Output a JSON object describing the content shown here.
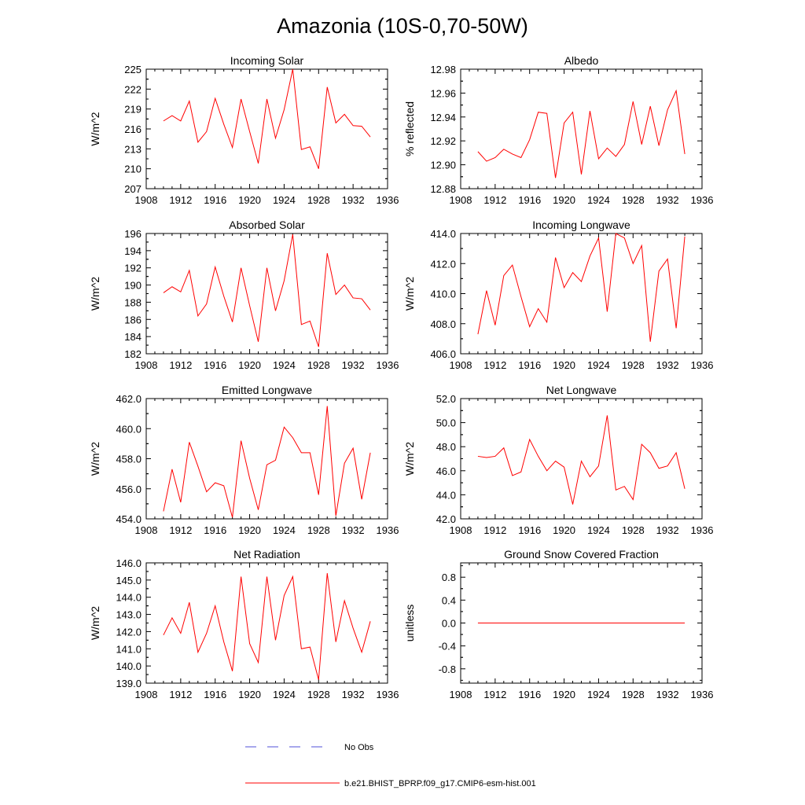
{
  "figure_title": "Amazonia (10S-0,70-50W)",
  "legend": [
    {
      "label": "No Obs",
      "color": "#4f4fd8",
      "style": "dashed"
    },
    {
      "label": "b.e21.BHIST_BPRP.f09_g17.CMIP6-esm-hist.001",
      "color": "#ff0000",
      "style": "solid"
    }
  ],
  "chart_data": [
    {
      "type": "line",
      "title": "Incoming Solar",
      "ylabel": "W/m^2",
      "xlabel": "",
      "xlim": [
        1908,
        1936
      ],
      "xticks": [
        "1908",
        "1912",
        "1916",
        "1920",
        "1924",
        "1928",
        "1932",
        "1936"
      ],
      "ylim": [
        207,
        225
      ],
      "yticks": [
        "207",
        "210",
        "213",
        "216",
        "219",
        "222",
        "225"
      ],
      "x": [
        1910,
        1911,
        1912,
        1913,
        1914,
        1915,
        1916,
        1917,
        1918,
        1919,
        1920,
        1921,
        1922,
        1923,
        1924,
        1925,
        1926,
        1927,
        1928,
        1929,
        1930,
        1931,
        1932,
        1933,
        1934
      ],
      "series": [
        {
          "name": "b.e21.BHIST_BPRP.f09_g17.CMIP6-esm-hist.001",
          "color": "#ff0000",
          "values": [
            217.2,
            218.0,
            217.2,
            220.2,
            214.0,
            215.6,
            220.6,
            216.7,
            213.2,
            220.5,
            215.6,
            210.8,
            220.5,
            214.6,
            218.9,
            225.0,
            212.9,
            213.3,
            210.0,
            222.3,
            216.9,
            218.2,
            216.5,
            216.4,
            214.8
          ]
        }
      ]
    },
    {
      "type": "line",
      "title": "Albedo",
      "ylabel": "% reflected",
      "xlabel": "",
      "xlim": [
        1908,
        1936
      ],
      "xticks": [
        "1908",
        "1912",
        "1916",
        "1920",
        "1924",
        "1928",
        "1932",
        "1936"
      ],
      "ylim": [
        12.88,
        12.98
      ],
      "yticks": [
        "12.88",
        "12.90",
        "12.92",
        "12.94",
        "12.96",
        "12.98"
      ],
      "x": [
        1910,
        1911,
        1912,
        1913,
        1914,
        1915,
        1916,
        1917,
        1918,
        1919,
        1920,
        1921,
        1922,
        1923,
        1924,
        1925,
        1926,
        1927,
        1928,
        1929,
        1930,
        1931,
        1932,
        1933,
        1934
      ],
      "series": [
        {
          "name": "b.e21.BHIST_BPRP.f09_g17.CMIP6-esm-hist.001",
          "color": "#ff0000",
          "values": [
            12.911,
            12.903,
            12.906,
            12.913,
            12.909,
            12.906,
            12.921,
            12.944,
            12.943,
            12.889,
            12.935,
            12.944,
            12.892,
            12.945,
            12.905,
            12.914,
            12.907,
            12.917,
            12.953,
            12.917,
            12.949,
            12.916,
            12.946,
            12.962,
            12.909
          ]
        }
      ]
    },
    {
      "type": "line",
      "title": "Absorbed Solar",
      "ylabel": "W/m^2",
      "xlabel": "",
      "xlim": [
        1908,
        1936
      ],
      "xticks": [
        "1908",
        "1912",
        "1916",
        "1920",
        "1924",
        "1928",
        "1932",
        "1936"
      ],
      "ylim": [
        182,
        196
      ],
      "yticks": [
        "182",
        "184",
        "186",
        "188",
        "190",
        "192",
        "194",
        "196"
      ],
      "x": [
        1910,
        1911,
        1912,
        1913,
        1914,
        1915,
        1916,
        1917,
        1918,
        1919,
        1920,
        1921,
        1922,
        1923,
        1924,
        1925,
        1926,
        1927,
        1928,
        1929,
        1930,
        1931,
        1932,
        1933,
        1934
      ],
      "series": [
        {
          "name": "b.e21.BHIST_BPRP.f09_g17.CMIP6-esm-hist.001",
          "color": "#ff0000",
          "values": [
            189.1,
            189.8,
            189.2,
            191.7,
            186.4,
            187.8,
            192.1,
            188.7,
            185.7,
            192.0,
            187.6,
            183.4,
            192.0,
            187.0,
            190.5,
            195.9,
            185.4,
            185.8,
            182.8,
            193.7,
            188.9,
            190.0,
            188.5,
            188.4,
            187.1
          ]
        }
      ]
    },
    {
      "type": "line",
      "title": "Incoming Longwave",
      "ylabel": "W/m^2",
      "xlabel": "",
      "xlim": [
        1908,
        1936
      ],
      "xticks": [
        "1908",
        "1912",
        "1916",
        "1920",
        "1924",
        "1928",
        "1932",
        "1936"
      ],
      "ylim": [
        406.0,
        414.0
      ],
      "yticks": [
        "406.0",
        "408.0",
        "410.0",
        "412.0",
        "414.0"
      ],
      "x": [
        1910,
        1911,
        1912,
        1913,
        1914,
        1915,
        1916,
        1917,
        1918,
        1919,
        1920,
        1921,
        1922,
        1923,
        1924,
        1925,
        1926,
        1927,
        1928,
        1929,
        1930,
        1931,
        1932,
        1933,
        1934
      ],
      "series": [
        {
          "name": "b.e21.BHIST_BPRP.f09_g17.CMIP6-esm-hist.001",
          "color": "#ff0000",
          "values": [
            407.3,
            410.2,
            407.9,
            411.2,
            411.9,
            409.8,
            407.8,
            409.0,
            408.1,
            412.4,
            410.4,
            411.4,
            410.8,
            412.5,
            413.7,
            408.8,
            414.0,
            413.7,
            412.0,
            413.2,
            406.8,
            411.5,
            412.3,
            407.7,
            413.8
          ]
        }
      ]
    },
    {
      "type": "line",
      "title": "Emitted Longwave",
      "ylabel": "W/m^2",
      "xlabel": "",
      "xlim": [
        1908,
        1936
      ],
      "xticks": [
        "1908",
        "1912",
        "1916",
        "1920",
        "1924",
        "1928",
        "1932",
        "1936"
      ],
      "ylim": [
        454.0,
        462.0
      ],
      "yticks": [
        "454.0",
        "456.0",
        "458.0",
        "460.0",
        "462.0"
      ],
      "x": [
        1910,
        1911,
        1912,
        1913,
        1914,
        1915,
        1916,
        1917,
        1918,
        1919,
        1920,
        1921,
        1922,
        1923,
        1924,
        1925,
        1926,
        1927,
        1928,
        1929,
        1930,
        1931,
        1932,
        1933,
        1934
      ],
      "series": [
        {
          "name": "b.e21.BHIST_BPRP.f09_g17.CMIP6-esm-hist.001",
          "color": "#ff0000",
          "values": [
            454.5,
            457.3,
            455.1,
            459.1,
            457.5,
            455.8,
            456.4,
            456.2,
            454.1,
            459.2,
            456.7,
            454.6,
            457.6,
            457.9,
            460.1,
            459.4,
            458.4,
            458.4,
            455.6,
            461.5,
            454.2,
            457.7,
            458.7,
            455.3,
            458.4
          ]
        }
      ]
    },
    {
      "type": "line",
      "title": "Net Longwave",
      "ylabel": "W/m^2",
      "xlabel": "",
      "xlim": [
        1908,
        1936
      ],
      "xticks": [
        "1908",
        "1912",
        "1916",
        "1920",
        "1924",
        "1928",
        "1932",
        "1936"
      ],
      "ylim": [
        42.0,
        52.0
      ],
      "yticks": [
        "42.0",
        "44.0",
        "46.0",
        "48.0",
        "50.0",
        "52.0"
      ],
      "x": [
        1910,
        1911,
        1912,
        1913,
        1914,
        1915,
        1916,
        1917,
        1918,
        1919,
        1920,
        1921,
        1922,
        1923,
        1924,
        1925,
        1926,
        1927,
        1928,
        1929,
        1930,
        1931,
        1932,
        1933,
        1934
      ],
      "series": [
        {
          "name": "b.e21.BHIST_BPRP.f09_g17.CMIP6-esm-hist.001",
          "color": "#ff0000",
          "values": [
            47.2,
            47.1,
            47.2,
            47.9,
            45.6,
            45.9,
            48.6,
            47.2,
            46.0,
            46.8,
            46.3,
            43.2,
            46.8,
            45.5,
            46.4,
            50.6,
            44.4,
            44.7,
            43.6,
            48.2,
            47.5,
            46.2,
            46.4,
            47.5,
            44.5
          ]
        }
      ]
    },
    {
      "type": "line",
      "title": "Net Radiation",
      "ylabel": "W/m^2",
      "xlabel": "",
      "xlim": [
        1908,
        1936
      ],
      "xticks": [
        "1908",
        "1912",
        "1916",
        "1920",
        "1924",
        "1928",
        "1932",
        "1936"
      ],
      "ylim": [
        139.0,
        146.0
      ],
      "yticks": [
        "139.0",
        "140.0",
        "141.0",
        "142.0",
        "143.0",
        "144.0",
        "145.0",
        "146.0"
      ],
      "x": [
        1910,
        1911,
        1912,
        1913,
        1914,
        1915,
        1916,
        1917,
        1918,
        1919,
        1920,
        1921,
        1922,
        1923,
        1924,
        1925,
        1926,
        1927,
        1928,
        1929,
        1930,
        1931,
        1932,
        1933,
        1934
      ],
      "series": [
        {
          "name": "b.e21.BHIST_BPRP.f09_g17.CMIP6-esm-hist.001",
          "color": "#ff0000",
          "values": [
            141.8,
            142.8,
            141.9,
            143.7,
            140.8,
            141.9,
            143.5,
            141.4,
            139.7,
            145.2,
            141.3,
            140.2,
            145.2,
            141.5,
            144.1,
            145.2,
            141.0,
            141.1,
            139.2,
            145.4,
            141.4,
            143.8,
            142.2,
            140.8,
            142.6
          ]
        }
      ]
    },
    {
      "type": "line",
      "title": "Ground Snow Covered Fraction",
      "ylabel": "unitless",
      "xlabel": "",
      "xlim": [
        1908,
        1936
      ],
      "xticks": [
        "1908",
        "1912",
        "1916",
        "1920",
        "1924",
        "1928",
        "1932",
        "1936"
      ],
      "ylim": [
        -1.05,
        1.05
      ],
      "yticks": [
        "-0.8",
        "-0.4",
        "0.0",
        "0.4",
        "0.8"
      ],
      "x": [
        1910,
        1911,
        1912,
        1913,
        1914,
        1915,
        1916,
        1917,
        1918,
        1919,
        1920,
        1921,
        1922,
        1923,
        1924,
        1925,
        1926,
        1927,
        1928,
        1929,
        1930,
        1931,
        1932,
        1933,
        1934
      ],
      "series": [
        {
          "name": "b.e21.BHIST_BPRP.f09_g17.CMIP6-esm-hist.001",
          "color": "#ff0000",
          "values": [
            0,
            0,
            0,
            0,
            0,
            0,
            0,
            0,
            0,
            0,
            0,
            0,
            0,
            0,
            0,
            0,
            0,
            0,
            0,
            0,
            0,
            0,
            0,
            0,
            0
          ]
        }
      ]
    }
  ]
}
